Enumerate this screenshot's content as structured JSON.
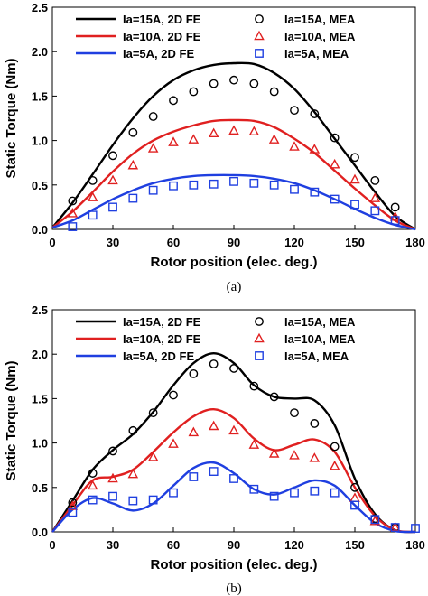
{
  "chart_data": [
    {
      "type": "line",
      "caption": "(a)",
      "xlabel": "Rotor position (elec. deg.)",
      "ylabel": "Static Torque (Nm)",
      "xlim": [
        0,
        180
      ],
      "ylim": [
        0,
        2.5
      ],
      "xticks": [
        0,
        30,
        60,
        90,
        120,
        150,
        180
      ],
      "yticks": [
        0.0,
        0.5,
        1.0,
        1.5,
        2.0,
        2.5
      ],
      "grid": false,
      "legend_position": "top",
      "series": [
        {
          "name": "Ia=15A, 2D FE",
          "kind": "line",
          "color": "#000000",
          "x": [
            0,
            10,
            20,
            30,
            40,
            50,
            60,
            70,
            80,
            90,
            100,
            110,
            120,
            130,
            140,
            150,
            160,
            170,
            180
          ],
          "y": [
            0.02,
            0.3,
            0.62,
            0.95,
            1.25,
            1.5,
            1.68,
            1.79,
            1.85,
            1.87,
            1.86,
            1.76,
            1.58,
            1.32,
            1.02,
            0.72,
            0.42,
            0.15,
            0.0
          ]
        },
        {
          "name": "Ia=10A, 2D FE",
          "kind": "line",
          "color": "#e02020",
          "x": [
            0,
            10,
            20,
            30,
            40,
            50,
            60,
            70,
            80,
            90,
            100,
            110,
            120,
            130,
            140,
            150,
            160,
            170,
            180
          ],
          "y": [
            0.02,
            0.2,
            0.42,
            0.65,
            0.85,
            1.0,
            1.1,
            1.17,
            1.22,
            1.23,
            1.22,
            1.15,
            1.02,
            0.86,
            0.66,
            0.46,
            0.27,
            0.1,
            0.0
          ]
        },
        {
          "name": "Ia=5A, 2D FE",
          "kind": "line",
          "color": "#1f3fe0",
          "x": [
            0,
            10,
            20,
            30,
            40,
            50,
            60,
            70,
            80,
            90,
            100,
            110,
            120,
            130,
            140,
            150,
            160,
            170,
            180
          ],
          "y": [
            0.02,
            0.1,
            0.22,
            0.34,
            0.44,
            0.52,
            0.57,
            0.6,
            0.61,
            0.61,
            0.6,
            0.57,
            0.52,
            0.44,
            0.34,
            0.23,
            0.13,
            0.05,
            0.0
          ]
        },
        {
          "name": "Ia=15A, MEA",
          "kind": "marker",
          "marker": "circle",
          "color": "#000000",
          "x": [
            10,
            20,
            30,
            40,
            50,
            60,
            70,
            80,
            90,
            100,
            110,
            120,
            130,
            140,
            150,
            160,
            170
          ],
          "y": [
            0.32,
            0.55,
            0.83,
            1.09,
            1.27,
            1.45,
            1.55,
            1.64,
            1.68,
            1.64,
            1.55,
            1.34,
            1.3,
            1.03,
            0.81,
            0.55,
            0.25
          ]
        },
        {
          "name": "Ia=10A, MEA",
          "kind": "marker",
          "marker": "triangle",
          "color": "#e02020",
          "x": [
            10,
            20,
            30,
            40,
            50,
            60,
            70,
            80,
            90,
            100,
            110,
            120,
            130,
            140,
            150,
            160,
            170
          ],
          "y": [
            0.18,
            0.36,
            0.55,
            0.72,
            0.91,
            0.98,
            1.01,
            1.08,
            1.11,
            1.1,
            1.01,
            0.93,
            0.9,
            0.73,
            0.56,
            0.35,
            0.14
          ]
        },
        {
          "name": "Ia=5A, MEA",
          "kind": "marker",
          "marker": "square",
          "color": "#1f3fe0",
          "x": [
            10,
            20,
            30,
            40,
            50,
            60,
            70,
            80,
            90,
            100,
            110,
            120,
            130,
            140,
            150,
            160,
            170
          ],
          "y": [
            0.03,
            0.16,
            0.25,
            0.35,
            0.44,
            0.49,
            0.5,
            0.51,
            0.54,
            0.52,
            0.5,
            0.45,
            0.42,
            0.34,
            0.28,
            0.21,
            0.1
          ]
        }
      ]
    },
    {
      "type": "line",
      "caption": "(b)",
      "xlabel": "Rotor position (elec. deg.)",
      "ylabel": "Static Torque (Nm)",
      "xlim": [
        0,
        180
      ],
      "ylim": [
        0,
        2.5
      ],
      "xticks": [
        0,
        30,
        60,
        90,
        120,
        150,
        180
      ],
      "yticks": [
        0.0,
        0.5,
        1.0,
        1.5,
        2.0,
        2.5
      ],
      "grid": false,
      "legend_position": "top",
      "series": [
        {
          "name": "Ia=15A, 2D FE",
          "kind": "line",
          "color": "#000000",
          "x": [
            0,
            10,
            20,
            30,
            40,
            50,
            60,
            70,
            80,
            90,
            100,
            110,
            120,
            130,
            140,
            150,
            160,
            170,
            180
          ],
          "y": [
            0.0,
            0.35,
            0.7,
            0.92,
            1.1,
            1.35,
            1.65,
            1.9,
            2.01,
            1.9,
            1.65,
            1.52,
            1.5,
            1.48,
            1.2,
            0.6,
            0.2,
            0.02,
            0.0
          ]
        },
        {
          "name": "Ia=10A, 2D FE",
          "kind": "line",
          "color": "#e02020",
          "x": [
            0,
            10,
            20,
            30,
            40,
            50,
            60,
            70,
            80,
            90,
            100,
            110,
            120,
            130,
            140,
            150,
            160,
            170,
            180
          ],
          "y": [
            0.0,
            0.3,
            0.58,
            0.62,
            0.7,
            0.9,
            1.12,
            1.3,
            1.38,
            1.28,
            1.05,
            0.92,
            0.98,
            1.04,
            0.9,
            0.5,
            0.18,
            0.02,
            0.0
          ]
        },
        {
          "name": "Ia=5A, 2D FE",
          "kind": "line",
          "color": "#1f3fe0",
          "x": [
            0,
            10,
            20,
            30,
            40,
            50,
            60,
            70,
            80,
            90,
            100,
            110,
            120,
            130,
            140,
            150,
            160,
            170,
            180
          ],
          "y": [
            0.0,
            0.25,
            0.38,
            0.32,
            0.24,
            0.32,
            0.52,
            0.72,
            0.78,
            0.66,
            0.48,
            0.42,
            0.5,
            0.58,
            0.52,
            0.3,
            0.1,
            0.01,
            0.0
          ]
        },
        {
          "name": "Ia=15A, MEA",
          "kind": "marker",
          "marker": "circle",
          "color": "#000000",
          "x": [
            10,
            20,
            30,
            40,
            50,
            60,
            70,
            80,
            90,
            100,
            110,
            120,
            130,
            140,
            150,
            160,
            170
          ],
          "y": [
            0.33,
            0.66,
            0.91,
            1.14,
            1.34,
            1.54,
            1.78,
            1.89,
            1.84,
            1.64,
            1.52,
            1.34,
            1.22,
            0.96,
            0.5,
            0.15,
            0.05
          ]
        },
        {
          "name": "Ia=10A, MEA",
          "kind": "marker",
          "marker": "triangle",
          "color": "#e02020",
          "x": [
            10,
            20,
            30,
            40,
            50,
            60,
            70,
            80,
            90,
            100,
            110,
            120,
            130,
            140,
            150,
            160,
            170
          ],
          "y": [
            0.29,
            0.52,
            0.6,
            0.65,
            0.84,
            0.99,
            1.12,
            1.19,
            1.14,
            0.98,
            0.88,
            0.86,
            0.83,
            0.74,
            0.38,
            0.12,
            0.05
          ]
        },
        {
          "name": "Ia=5A, MEA",
          "kind": "marker",
          "marker": "square",
          "color": "#1f3fe0",
          "x": [
            10,
            20,
            30,
            40,
            50,
            60,
            70,
            80,
            90,
            100,
            110,
            120,
            130,
            140,
            150,
            160,
            170,
            180
          ],
          "y": [
            0.22,
            0.36,
            0.4,
            0.35,
            0.36,
            0.44,
            0.62,
            0.68,
            0.6,
            0.48,
            0.4,
            0.44,
            0.46,
            0.44,
            0.3,
            0.14,
            0.05,
            0.04
          ]
        }
      ]
    }
  ]
}
